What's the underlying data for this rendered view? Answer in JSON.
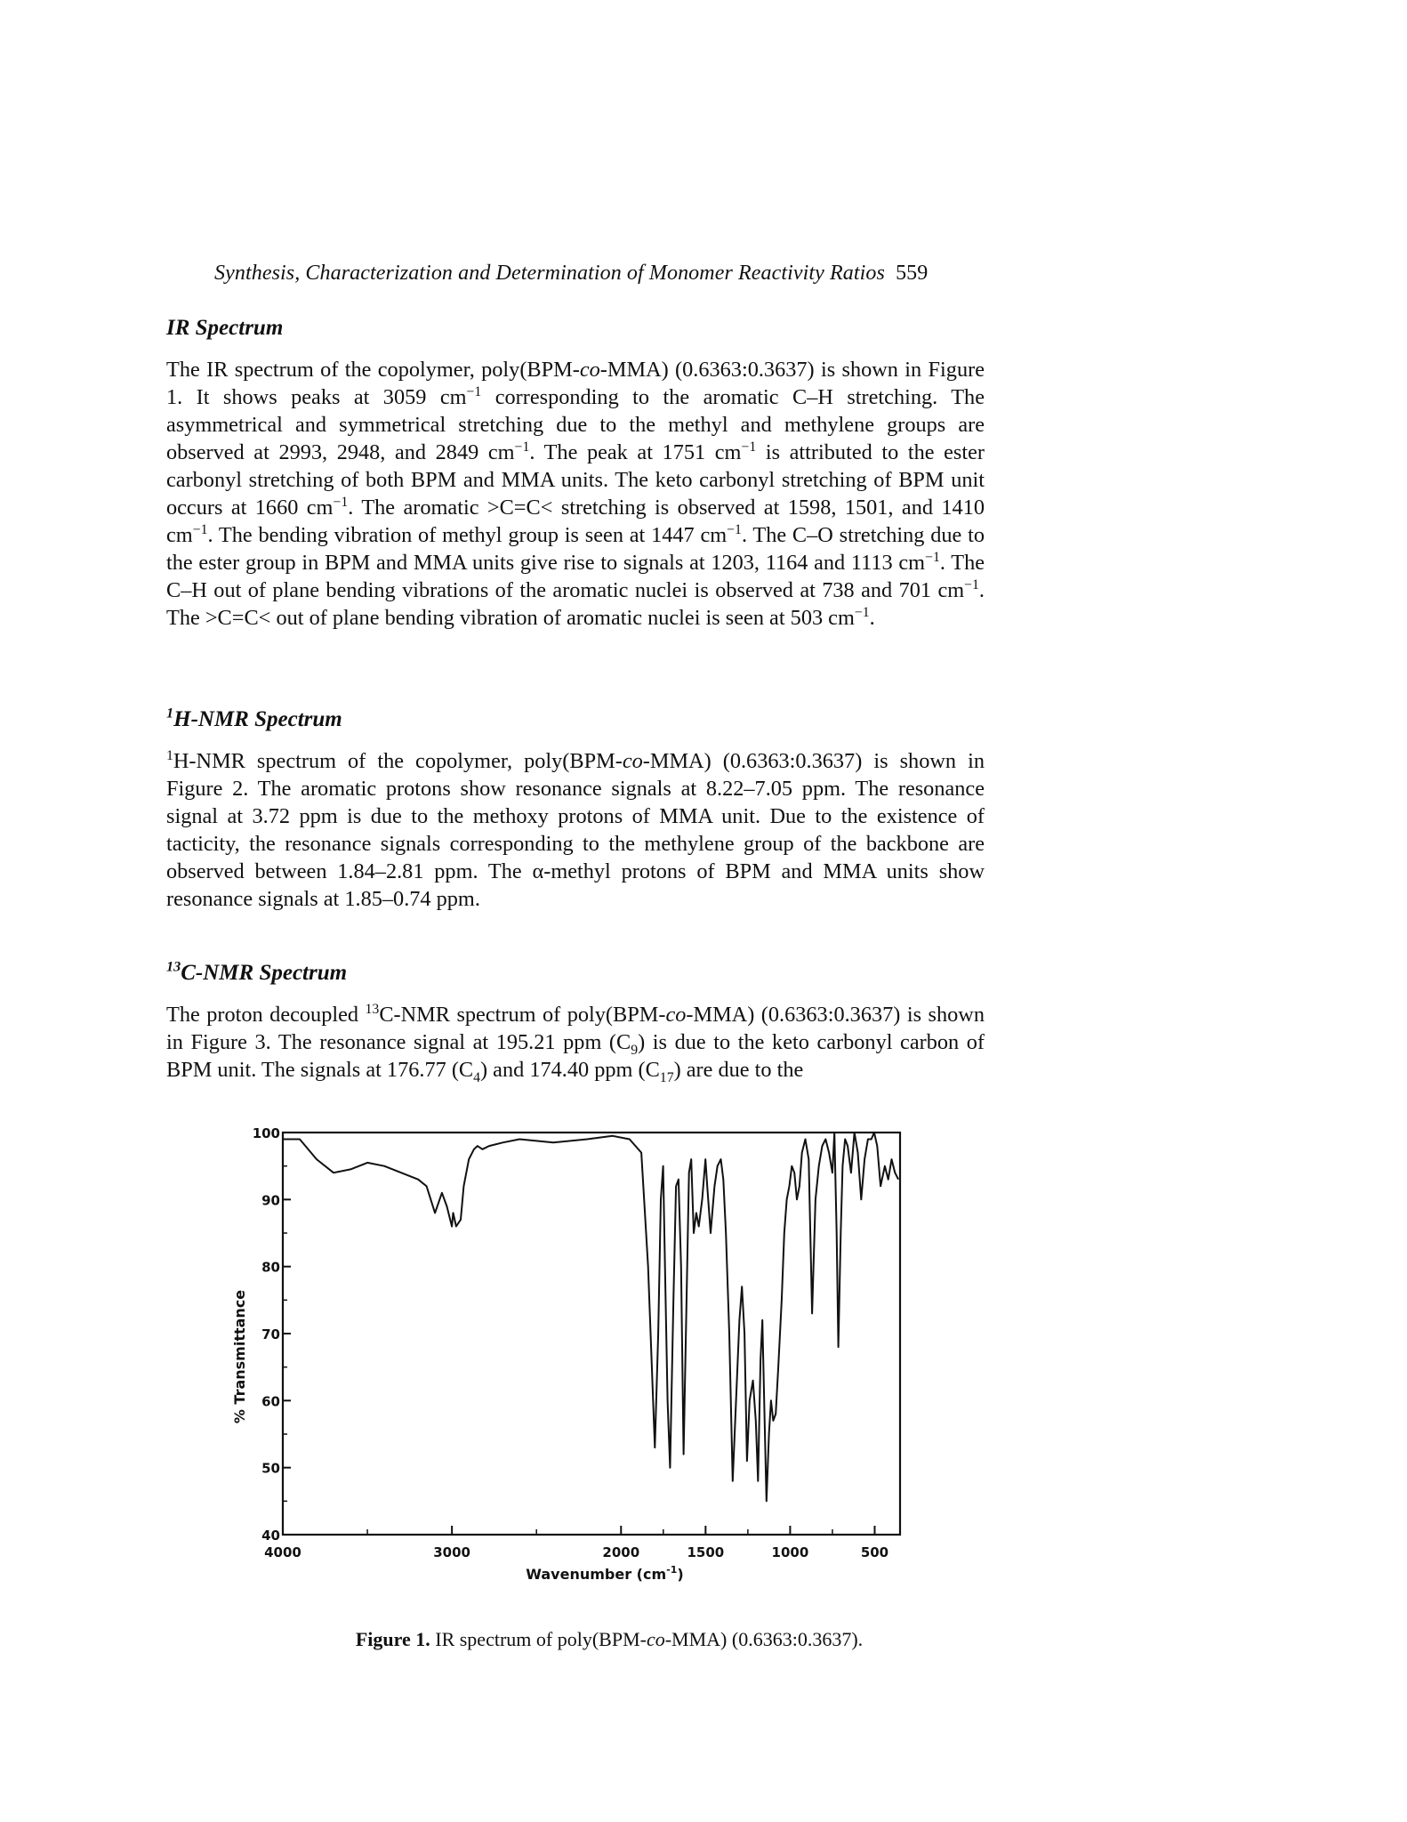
{
  "running_head": {
    "title": "Synthesis, Characterization and Determination of Monomer Reactivity Ratios",
    "page_number": "559"
  },
  "ir_section": {
    "heading": "IR Spectrum",
    "p1": "The IR spectrum of the copolymer, poly(BPM-",
    "p1_it": "co",
    "p2": "-MMA) (0.6363:0.3637) is shown in Figure 1. It shows peaks at 3059 cm",
    "p3": " corresponding to the aromatic C–H stretching. The asymmetrical and symmetrical stretching due to the methyl and methylene groups are observed at 2993, 2948, and 2849 cm",
    "p4": ". The peak at 1751 cm",
    "p5": " is attributed to the ester carbonyl stretching of both BPM and MMA units. The keto carbonyl stretching of BPM unit occurs at 1660 cm",
    "p6": ". The aromatic >C=C< stretching is observed at 1598, 1501, and 1410 cm",
    "p7": ". The bending vibration of methyl group is seen at 1447 cm",
    "p8": ". The C–O stretching due to the ester group in BPM and MMA units give rise to signals at 1203, 1164 and 1113 cm",
    "p9": ". The C–H out of plane bending vibrations of the aromatic nuclei is observed at 738 and 701 cm",
    "p10": ". The >C=C< out of plane bending vibration of aromatic nuclei is seen at 503 cm",
    "p11": ".",
    "sup": "−1"
  },
  "h_nmr_section": {
    "heading_sup": "1",
    "heading": "H-NMR Spectrum",
    "lead_sup": "1",
    "p1": "H-NMR spectrum of the copolymer, poly(BPM-",
    "p1_it": "co",
    "p2": "-MMA) (0.6363:0.3637) is shown in Figure 2. The aromatic protons show resonance signals at 8.22–7.05 ppm. The resonance signal at 3.72 ppm is due to the methoxy protons of MMA unit. Due to the existence of tacticity, the resonance signals corresponding to the methylene group of the backbone are observed between 1.84–2.81 ppm. The α-methyl protons of BPM and MMA units show resonance signals at 1.85–0.74 ppm."
  },
  "c_nmr_section": {
    "heading_sup": "13",
    "heading": "C-NMR Spectrum",
    "p1": "The proton decoupled ",
    "p1_sup": "13",
    "p2": "C-NMR spectrum of poly(BPM-",
    "p2_it": "co",
    "p3": "-MMA) (0.6363:0.3637) is shown in Figure 3. The resonance signal at 195.21 ppm (C",
    "sub1": "9",
    "p4": ") is due to the keto carbonyl carbon of BPM unit. The signals at 176.77 (C",
    "sub2": "4",
    "p5": ") and 174.40 ppm (C",
    "sub3": "17",
    "p6": ") are due to the"
  },
  "figure": {
    "caption_label": "Figure 1.",
    "caption_text": " IR spectrum of poly(BPM-",
    "caption_it": "co",
    "caption_end": "-MMA) (0.6363:0.3637).",
    "y_axis_label": "% Transmittance",
    "x_axis_label": "Wavenumber (cm",
    "x_axis_label_sup": "-1",
    "x_axis_label_end": ")"
  },
  "chart_data": {
    "type": "line",
    "title": "",
    "xlabel": "Wavenumber (cm-1)",
    "ylabel": "% Transmittance",
    "xlim": [
      4000,
      350
    ],
    "ylim": [
      40,
      100
    ],
    "x_ticks": [
      4000,
      3000,
      2000,
      1500,
      1000,
      500
    ],
    "x_tick_labels": [
      "4000",
      "3000",
      "2000",
      "1500",
      "1000",
      "500"
    ],
    "y_ticks": [
      40,
      50,
      60,
      70,
      80,
      90,
      100
    ],
    "y_tick_labels": [
      "40",
      "50",
      "60",
      "70",
      "80",
      "90",
      "100"
    ],
    "grid": false,
    "series": [
      {
        "x": [
          4000,
          3900,
          3800,
          3700,
          3600,
          3500,
          3400,
          3300,
          3200,
          3150,
          3100,
          3059,
          3030,
          3000,
          2993,
          2975,
          2948,
          2930,
          2900,
          2870,
          2849,
          2820,
          2780,
          2700,
          2600,
          2400,
          2200,
          2050,
          1950,
          1880,
          1840,
          1800,
          1780,
          1765,
          1751,
          1740,
          1725,
          1710,
          1690,
          1675,
          1660,
          1645,
          1630,
          1615,
          1598,
          1585,
          1570,
          1555,
          1540,
          1520,
          1501,
          1490,
          1470,
          1447,
          1430,
          1410,
          1395,
          1380,
          1360,
          1340,
          1320,
          1300,
          1285,
          1270,
          1255,
          1240,
          1220,
          1203,
          1190,
          1175,
          1164,
          1150,
          1140,
          1125,
          1113,
          1100,
          1085,
          1070,
          1050,
          1035,
          1020,
          1005,
          990,
          975,
          960,
          945,
          930,
          910,
          890,
          870,
          850,
          830,
          810,
          790,
          770,
          750,
          738,
          725,
          715,
          701,
          690,
          675,
          660,
          640,
          620,
          600,
          580,
          560,
          540,
          520,
          503,
          485,
          465,
          440,
          420,
          400,
          380,
          360
        ],
        "y": [
          99,
          99,
          96,
          94,
          94.5,
          95.5,
          95,
          94,
          93,
          92,
          88,
          91,
          89,
          86,
          88,
          86,
          87,
          92,
          96,
          97.5,
          98,
          97.5,
          98,
          98.5,
          99,
          98.5,
          99,
          99.5,
          99,
          97,
          80,
          53,
          70,
          90,
          95,
          80,
          60,
          50,
          75,
          92,
          93,
          80,
          52,
          72,
          94,
          96,
          85,
          88,
          86,
          90,
          96,
          92,
          85,
          92,
          95,
          96,
          93,
          85,
          70,
          48,
          60,
          72,
          77,
          70,
          51,
          60,
          63,
          57,
          48,
          66,
          72,
          56,
          45,
          55,
          60,
          57,
          58,
          65,
          75,
          85,
          90,
          92,
          95,
          94,
          90,
          92,
          97,
          99,
          96,
          73,
          90,
          95,
          98,
          99,
          97,
          94,
          100,
          85,
          68,
          85,
          95,
          99,
          98,
          94,
          100,
          97,
          90,
          96,
          99,
          99,
          100,
          98,
          92,
          95,
          93,
          96,
          94,
          93
        ]
      }
    ]
  }
}
